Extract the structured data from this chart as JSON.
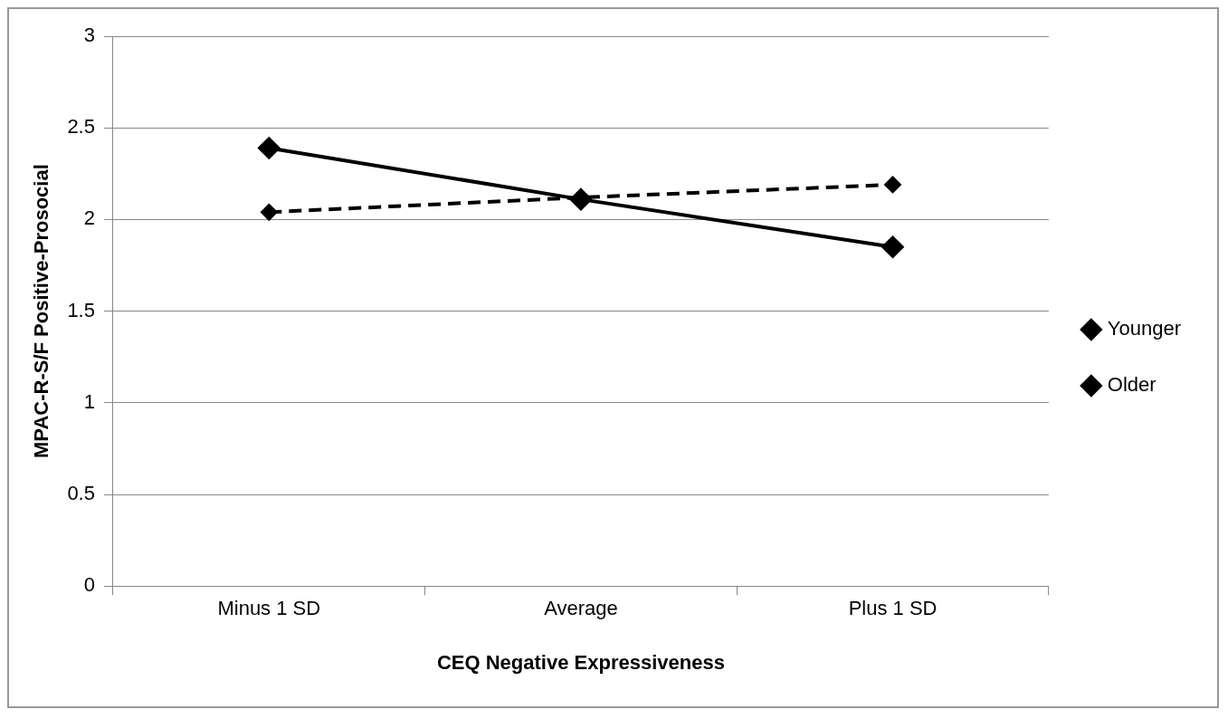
{
  "chart_data": {
    "type": "line",
    "xlabel": "CEQ Negative Expressiveness",
    "ylabel": "MPAC-R-S/F Positive-Prosocial",
    "categories": [
      "Minus 1 SD",
      "Average",
      "Plus 1 SD"
    ],
    "series": [
      {
        "name": "Younger",
        "color": "#000000",
        "values": [
          2.04,
          2.12,
          2.19
        ],
        "line_style": "dashed"
      },
      {
        "name": "Older",
        "color": "#000000",
        "values": [
          2.39,
          2.11,
          1.85
        ],
        "line_style": "solid"
      }
    ],
    "ylim": [
      0,
      3
    ],
    "yticks": [
      0,
      0.5,
      1,
      1.5,
      2,
      2.5,
      3
    ],
    "grid": "y",
    "legend": "right",
    "marker": "diamond"
  }
}
